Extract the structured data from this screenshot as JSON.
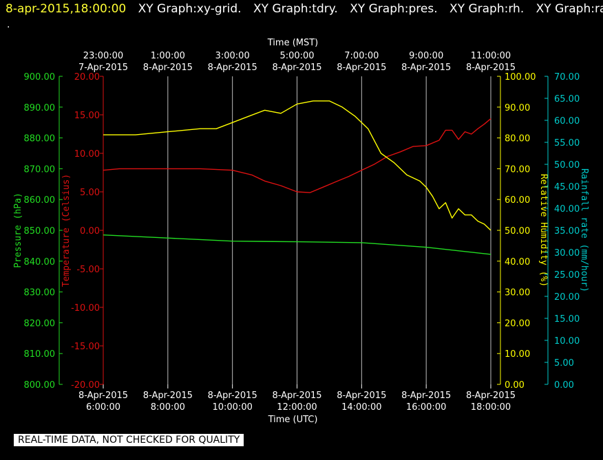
{
  "header": {
    "date": "8-apr-2015,18:00:00",
    "graphs": [
      "XY Graph:xy-grid.",
      "XY Graph:tdry.",
      "XY Graph:pres.",
      "XY Graph:rh.",
      "XY Graph:rain"
    ]
  },
  "dot": ".",
  "footer": "REAL-TIME DATA, NOT CHECKED FOR QUALITY",
  "colors": {
    "pressure": "#22dd22",
    "temperature": "#dd1111",
    "humidity": "#ffff00",
    "rainfall": "#00cccc",
    "grid": "#ffffff"
  },
  "chart_data": {
    "type": "line",
    "top_axis": {
      "title": "Time (MST)",
      "ticks": [
        {
          "time": "23:00:00",
          "date": "7-Apr-2015"
        },
        {
          "time": "1:00:00",
          "date": "8-Apr-2015"
        },
        {
          "time": "3:00:00",
          "date": "8-Apr-2015"
        },
        {
          "time": "5:00:00",
          "date": "8-Apr-2015"
        },
        {
          "time": "7:00:00",
          "date": "8-Apr-2015"
        },
        {
          "time": "9:00:00",
          "date": "8-Apr-2015"
        },
        {
          "time": "11:00:00",
          "date": "8-Apr-2015"
        }
      ]
    },
    "bottom_axis": {
      "title": "Time (UTC)",
      "ticks": [
        {
          "date": "8-Apr-2015",
          "time": "6:00:00"
        },
        {
          "date": "8-Apr-2015",
          "time": "8:00:00"
        },
        {
          "date": "8-Apr-2015",
          "time": "10:00:00"
        },
        {
          "date": "8-Apr-2015",
          "time": "12:00:00"
        },
        {
          "date": "8-Apr-2015",
          "time": "14:00:00"
        },
        {
          "date": "8-Apr-2015",
          "time": "16:00:00"
        },
        {
          "date": "8-Apr-2015",
          "time": "18:00:00"
        }
      ],
      "range_utc_hours": [
        6,
        18
      ]
    },
    "axes": {
      "pressure": {
        "label": "Pressure (hPa)",
        "range": [
          800,
          900
        ],
        "ticks": [
          "800.00",
          "810.00",
          "820.00",
          "830.00",
          "840.00",
          "850.00",
          "860.00",
          "870.00",
          "880.00",
          "890.00",
          "900.00"
        ]
      },
      "temperature": {
        "label": "Temperature (Celsius)",
        "range": [
          -20,
          20
        ],
        "ticks": [
          "-20.00",
          "-15.00",
          "-10.00",
          "-5.00",
          "0.00",
          "5.00",
          "10.00",
          "15.00",
          "20.00"
        ]
      },
      "humidity": {
        "label": "Relative Humidity (%)",
        "range": [
          0,
          100
        ],
        "ticks": [
          "0.00",
          "10.00",
          "20.00",
          "30.00",
          "40.00",
          "50.00",
          "60.00",
          "70.00",
          "80.00",
          "90.00",
          "100.00"
        ]
      },
      "rainfall": {
        "label": "Rainfall rate (mm/hour)",
        "range": [
          0,
          70
        ],
        "ticks": [
          "0.00",
          "5.00",
          "10.00",
          "15.00",
          "20.00",
          "25.00",
          "30.00",
          "35.00",
          "40.00",
          "45.00",
          "50.00",
          "55.00",
          "60.00",
          "65.00",
          "70.00"
        ]
      }
    },
    "series": [
      {
        "name": "Temperature",
        "axis": "temperature",
        "x": [
          6.0,
          6.5,
          7.0,
          8.0,
          9.0,
          10.0,
          10.6,
          11.0,
          11.5,
          12.0,
          12.4,
          12.8,
          13.2,
          13.6,
          14.0,
          14.4,
          14.8,
          15.2,
          15.6,
          16.0,
          16.4,
          16.6,
          16.8,
          17.0,
          17.2,
          17.4,
          17.6,
          17.8,
          18.0
        ],
        "y": [
          7.8,
          8.0,
          8.0,
          8.0,
          8.0,
          7.8,
          7.2,
          6.4,
          5.8,
          5.0,
          4.9,
          5.6,
          6.3,
          7.0,
          7.8,
          8.6,
          9.6,
          10.2,
          10.9,
          11.0,
          11.7,
          13.0,
          13.0,
          11.8,
          12.8,
          12.5,
          13.2,
          13.8,
          14.5
        ]
      },
      {
        "name": "Relative Humidity",
        "axis": "humidity",
        "x": [
          6.0,
          7.0,
          8.0,
          9.0,
          9.5,
          10.0,
          10.5,
          11.0,
          11.5,
          12.0,
          12.5,
          13.0,
          13.4,
          13.8,
          14.2,
          14.6,
          15.0,
          15.4,
          15.8,
          16.0,
          16.2,
          16.4,
          16.6,
          16.8,
          17.0,
          17.2,
          17.4,
          17.6,
          17.8,
          18.0
        ],
        "y": [
          81,
          81,
          82,
          83,
          83,
          85,
          87,
          89,
          88,
          91,
          92,
          92,
          90,
          87,
          83,
          75,
          72,
          68,
          66,
          64,
          61,
          57,
          59,
          54,
          57,
          55,
          55,
          53,
          52,
          50
        ]
      },
      {
        "name": "Pressure",
        "axis": "pressure",
        "x": [
          6.0,
          8.0,
          10.0,
          12.0,
          14.0,
          16.0,
          18.0
        ],
        "y": [
          848.5,
          847.5,
          846.5,
          846.3,
          846.0,
          844.5,
          842.2
        ]
      }
    ]
  }
}
